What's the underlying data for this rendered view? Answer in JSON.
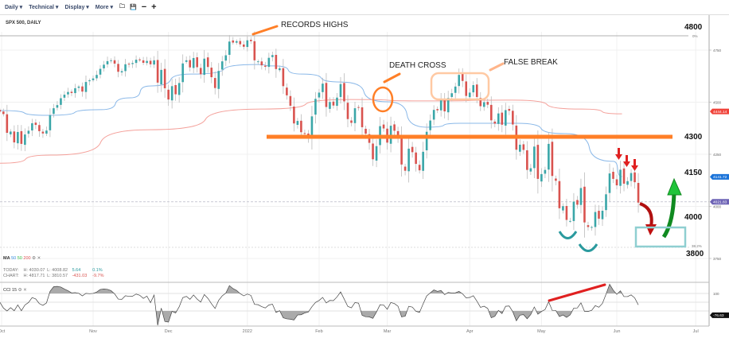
{
  "toolbar": {
    "items": [
      "Daily ▾",
      "Technical ▾",
      "Display ▾",
      "More ▾"
    ],
    "icons": [
      "folder-icon",
      "save-icon",
      "zoom-out-icon",
      "zoom-in-icon"
    ],
    "icon_glyphs": [
      "🗀",
      "💾",
      "−",
      "+"
    ]
  },
  "chart_title": "SPX 500, DAILY",
  "colors": {
    "up": "#3aa6a8",
    "down": "#d9534f",
    "ma50": "#8ab8e8",
    "ma200": "#f4a09a",
    "orange": "#ff7f27",
    "teal_box": "#8fcfd1",
    "green_arrow": "#1fc43a",
    "red_arrow": "#e02020"
  },
  "legend": {
    "ma_label": "MA",
    "ma_periods": [
      "50",
      "50",
      "200"
    ],
    "today": {
      "label": "TODAY:",
      "h": "H: 4030.07",
      "l": "L: 4008.82",
      "chg": "5.64",
      "pct": "0.1%"
    },
    "chart": {
      "label": "CHART:",
      "h": "H: 4817.71",
      "l": "L: 3810.57",
      "chg": "-431.03",
      "pct": "-9.7%"
    },
    "cci_label": "CCI 15"
  },
  "annotations": {
    "records": "RECORDS HIGHS",
    "death_cross": "DEATH CROSS",
    "false_break": "FALSE BREAK",
    "levels": [
      "4800",
      "4300",
      "4150",
      "4000",
      "3800"
    ],
    "fib_0": "0%",
    "fib_382": "38.2%"
  },
  "chart_data": {
    "type": "candlestick",
    "symbol": "SPX 500",
    "interval": "Daily",
    "y_ticks": [
      "4750",
      "4500",
      "4250",
      "4000",
      "3750"
    ],
    "ylim": [
      3700,
      4850
    ],
    "x_ticks": [
      "Oct",
      "Nov",
      "Dec",
      "2022",
      "Feb",
      "Mar",
      "Apr",
      "May",
      "Jun",
      "Jul"
    ],
    "closes_by_month": {
      "2021-09": [
        4455,
        4443,
        4353,
        4359,
        4307
      ],
      "2021-10": [
        4357,
        4300,
        4345,
        4363,
        4399,
        4391,
        4361,
        4350,
        4364,
        4438,
        4471,
        4486,
        4519,
        4536,
        4549,
        4544,
        4567,
        4575,
        4551,
        4597,
        4605
      ],
      "2021-11": [
        4614,
        4631,
        4660,
        4680,
        4697,
        4701,
        4685,
        4646,
        4649,
        4682,
        4683,
        4688,
        4704,
        4701,
        4689,
        4698,
        4682,
        4701,
        4594,
        4655,
        4567
      ],
      "2021-12": [
        4513,
        4577,
        4538,
        4592,
        4686,
        4701,
        4667,
        4712,
        4668,
        4634,
        4709,
        4669,
        4620,
        4568,
        4650,
        4696,
        4725,
        4791,
        4786,
        4793,
        4778,
        4766
      ],
      "2022-01": [
        4797,
        4793,
        4701,
        4696,
        4677,
        4670,
        4713,
        4726,
        4659,
        4663,
        4577,
        4533,
        4483,
        4398,
        4410,
        4356,
        4350,
        4327,
        4432,
        4516
      ],
      "2022-02": [
        4546,
        4589,
        4477,
        4501,
        4484,
        4522,
        4587,
        4504,
        4419,
        4401,
        4471,
        4475,
        4380,
        4349,
        4305,
        4226,
        4289,
        4385,
        4374
      ],
      "2022-03": [
        4306,
        4387,
        4363,
        4329,
        4201,
        4171,
        4277,
        4260,
        4204,
        4173,
        4262,
        4358,
        4412,
        4463,
        4461,
        4512,
        4456,
        4520,
        4543,
        4575,
        4631,
        4602,
        4530
      ],
      "2022-04": [
        4546,
        4582,
        4525,
        4481,
        4500,
        4488,
        4413,
        4397,
        4446,
        4392,
        4462,
        4459,
        4393,
        4272,
        4296,
        4271,
        4175,
        4183,
        4287,
        4132
      ],
      "2022-05": [
        4155,
        4175,
        4300,
        4146,
        4123,
        3991,
        4001,
        3935,
        3930,
        4023,
        4008,
        4088,
        3923,
        3901,
        3901,
        3973,
        3941,
        3979,
        4058,
        4158,
        4132
      ],
      "2022-06": [
        4101,
        4176,
        4109,
        4121,
        4160,
        4116,
        4018
      ]
    },
    "ma50": [
      {
        "date": "2021-09-24",
        "v": 4460
      },
      {
        "date": "2021-10-14",
        "v": 4437
      },
      {
        "date": "2021-11-04",
        "v": 4464
      },
      {
        "date": "2021-11-16",
        "v": 4521
      },
      {
        "date": "2021-11-24",
        "v": 4578
      },
      {
        "date": "2021-12-10",
        "v": 4635
      },
      {
        "date": "2022-01-05",
        "v": 4681
      },
      {
        "date": "2022-01-13",
        "v": 4674
      },
      {
        "date": "2022-01-25",
        "v": 4635
      },
      {
        "date": "2022-02-10",
        "v": 4597
      },
      {
        "date": "2022-03-01",
        "v": 4502
      },
      {
        "date": "2022-03-16",
        "v": 4380
      },
      {
        "date": "2022-03-29",
        "v": 4399
      },
      {
        "date": "2022-04-21",
        "v": 4399
      },
      {
        "date": "2022-05-11",
        "v": 4349
      },
      {
        "date": "2022-05-31",
        "v": 4216
      },
      {
        "date": "2022-06-08",
        "v": 4143
      }
    ],
    "ma200": [
      {
        "date": "2021-09-24",
        "v": 4207
      },
      {
        "date": "2021-10-15",
        "v": 4246
      },
      {
        "date": "2021-11-24",
        "v": 4368
      },
      {
        "date": "2022-01-07",
        "v": 4467
      },
      {
        "date": "2022-02-14",
        "v": 4513
      },
      {
        "date": "2022-03-16",
        "v": 4506
      },
      {
        "date": "2022-04-19",
        "v": 4510
      },
      {
        "date": "2022-05-18",
        "v": 4467
      },
      {
        "date": "2022-06-08",
        "v": 4444
      }
    ],
    "price_badges": [
      {
        "label": "4444.14",
        "color": "#f0433a",
        "price": 4444.14
      },
      {
        "label": "4141.72",
        "color": "#1a73d9",
        "price": 4141.72
      },
      {
        "label": "4021.83",
        "color": "#6d63b5",
        "price": 4021.83
      }
    ],
    "horizontal_levels": {
      "resistance": 4300,
      "fib_0": 4818,
      "fib_382": 3800,
      "last": 4021.83
    },
    "cci": {
      "period": 15,
      "ticks": [
        "100"
      ],
      "last_label": "-76.63"
    }
  }
}
